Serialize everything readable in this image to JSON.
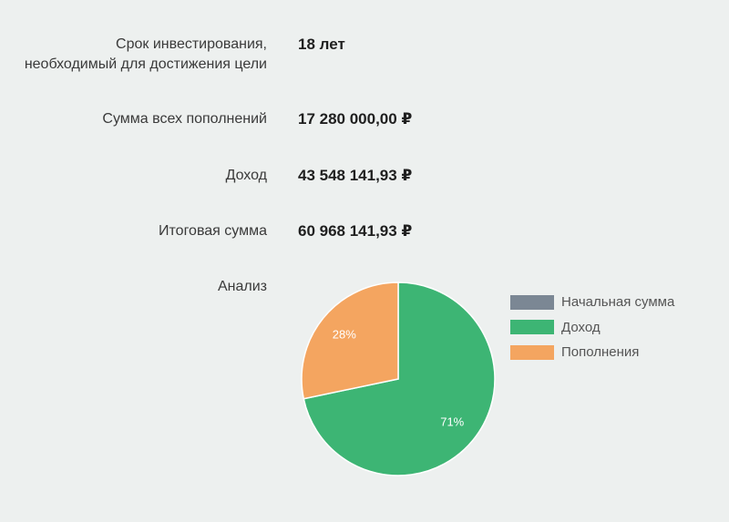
{
  "results": [
    {
      "label_line1": "Срок инвестирования,",
      "label_line2": "необходимый для достижения цели",
      "value": "18 лет"
    },
    {
      "label_line1": "Сумма всех пополнений",
      "value": "17 280 000,00 ₽"
    },
    {
      "label_line1": "Доход",
      "value": "43 548 141,93 ₽"
    },
    {
      "label_line1": "Итоговая сумма",
      "value": "60 968 141,93 ₽"
    }
  ],
  "analysis_label": "Анализ",
  "chart_data": {
    "type": "pie",
    "slices": [
      {
        "name": "Начальная сумма",
        "value": 0,
        "label": "0%",
        "color": "#7b8794"
      },
      {
        "name": "Доход",
        "value": 71,
        "label": "71%",
        "color": "#3db574"
      },
      {
        "name": "Пополнения",
        "value": 28,
        "label": "28%",
        "color": "#f4a560"
      }
    ],
    "legend_position": "right"
  }
}
